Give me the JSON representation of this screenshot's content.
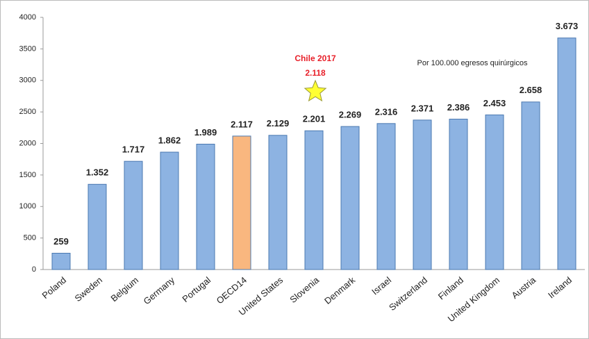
{
  "chart_data": {
    "type": "bar",
    "categories": [
      "Poland",
      "Sweden",
      "Belgium",
      "Germany",
      "Portugal",
      "OECD14",
      "United States",
      "Slovenia",
      "Denmark",
      "Israel",
      "Switzerland",
      "Finland",
      "United Kingdom",
      "Austria",
      "Ireland"
    ],
    "values": [
      259,
      1352,
      1717,
      1862,
      1989,
      2117,
      2129,
      2201,
      2269,
      2316,
      2371,
      2386,
      2453,
      2658,
      3673
    ],
    "value_labels": [
      "259",
      "1.352",
      "1.717",
      "1.862",
      "1.989",
      "2.117",
      "2.129",
      "2.201",
      "2.269",
      "2.316",
      "2.371",
      "2.386",
      "2.453",
      "2.658",
      "3.673"
    ],
    "colors": [
      "#8db3e2",
      "#8db3e2",
      "#8db3e2",
      "#8db3e2",
      "#8db3e2",
      "#f9b77f",
      "#8db3e2",
      "#8db3e2",
      "#8db3e2",
      "#8db3e2",
      "#8db3e2",
      "#8db3e2",
      "#8db3e2",
      "#8db3e2",
      "#8db3e2"
    ],
    "ylim": [
      0,
      4000
    ],
    "yticks": [
      0,
      500,
      1000,
      1500,
      2000,
      2500,
      3000,
      3500,
      4000
    ],
    "grid": false,
    "annotations": [
      "Chile 2017",
      "2.118",
      "Por 100.000 egresos quirúrgicos"
    ]
  }
}
